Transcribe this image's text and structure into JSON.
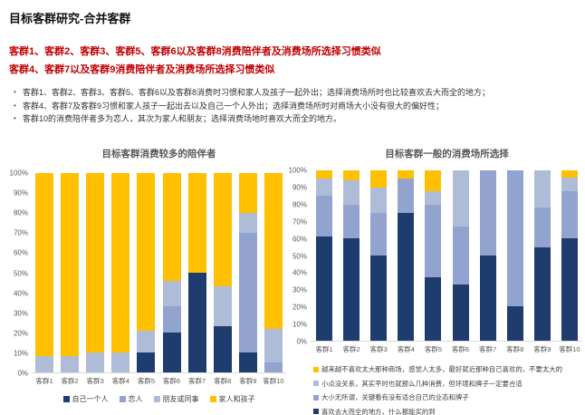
{
  "header": {
    "title": "目标客群研究-合并客群",
    "red_lines": [
      "客群1、客群2、客群3、客群5、客群6以及客群8消费陪伴者及消费场所选择习惯类似",
      "客群4、客群7以及客群9消费陪伴者及消费场所选择习惯类似"
    ],
    "bullets": [
      "客群1、客群2、客群3、客群5、客群6以及客群8消费时习惯和家人及孩子一起外出；选择消费场所时也比较喜欢去大而全的地方；",
      "客群4、客群7及客群9习惯和家人孩子一起出去以及自己一个人外出；选择消费场所时对商场大小没有很大的偏好性；",
      "客群10的消费陪伴者多为恋人，其次为家人和朋友；选择消费场地时喜欢大而全的地方。"
    ]
  },
  "colors": {
    "navy": "#1E3C6E",
    "periwinkle": "#92A3CF",
    "light_blue": "#AFBCD8",
    "yellow": "#FFC000",
    "red_text": "#C00000",
    "axis_text": "#595959"
  },
  "chart_data": [
    {
      "type": "bar",
      "stacked": true,
      "percent": true,
      "title": "目标客群消费较多的陪伴者",
      "categories": [
        "客群1",
        "客群2",
        "客群3",
        "客群4",
        "客群5",
        "客群6",
        "客群7",
        "客群8",
        "客群9",
        "客群10"
      ],
      "series": [
        {
          "name": "自己一个人",
          "color_key": "navy",
          "values": [
            0,
            0,
            0,
            0,
            10,
            20,
            50,
            23,
            10,
            0
          ]
        },
        {
          "name": "恋人",
          "color_key": "periwinkle",
          "values": [
            0,
            0,
            0,
            0,
            0,
            13,
            0,
            0,
            60,
            5
          ]
        },
        {
          "name": "朋友或同事",
          "color_key": "light_blue",
          "values": [
            8,
            8,
            10,
            10,
            11,
            13,
            0,
            20,
            10,
            17
          ]
        },
        {
          "name": "家人和孩子",
          "color_key": "yellow",
          "values": [
            92,
            92,
            90,
            90,
            79,
            54,
            50,
            57,
            20,
            78
          ]
        }
      ],
      "yticks": [
        "100%",
        "90%",
        "80%",
        "70%",
        "60%",
        "50%",
        "40%",
        "30%",
        "20%",
        "10%",
        "0%"
      ],
      "ylim": [
        0,
        100
      ],
      "grid": false,
      "legend_position": "bottom-horizontal",
      "legend_reversed": false
    },
    {
      "type": "bar",
      "stacked": true,
      "percent": true,
      "title": "目标客群一般的消费场所选择",
      "categories": [
        "客群1",
        "客群2",
        "客群3",
        "客群4",
        "客群5",
        "客群6",
        "客群7",
        "客群8",
        "客群9",
        "客群10"
      ],
      "series": [
        {
          "name": "喜欢去大而全的地方，什么都能买的到",
          "color_key": "navy",
          "values": [
            61,
            60,
            50,
            75,
            37,
            33,
            50,
            20,
            55,
            60
          ]
        },
        {
          "name": "大小无所谓，关键看有没有适合自己的业态和牌子",
          "color_key": "periwinkle",
          "values": [
            24,
            20,
            25,
            20,
            43,
            34,
            50,
            80,
            23,
            28
          ]
        },
        {
          "name": "小点没关系，其实平时也就那么几种消费，但环境和牌子一定要合适",
          "color_key": "light_blue",
          "values": [
            10,
            14,
            15,
            0,
            8,
            33,
            0,
            0,
            22,
            8
          ]
        },
        {
          "name": "越来越不喜欢太大那种商场，感觉人太多，最好就近那种自己喜欢的，不要太大的",
          "color_key": "yellow",
          "values": [
            5,
            6,
            10,
            5,
            12,
            0,
            0,
            0,
            0,
            4
          ]
        }
      ],
      "yticks": [
        "100%",
        "90%",
        "80%",
        "70%",
        "60%",
        "50%",
        "40%",
        "30%",
        "20%",
        "10%",
        "0%"
      ],
      "ylim": [
        0,
        100
      ],
      "grid": false,
      "legend_position": "bottom-vertical",
      "legend_reversed": true
    }
  ]
}
